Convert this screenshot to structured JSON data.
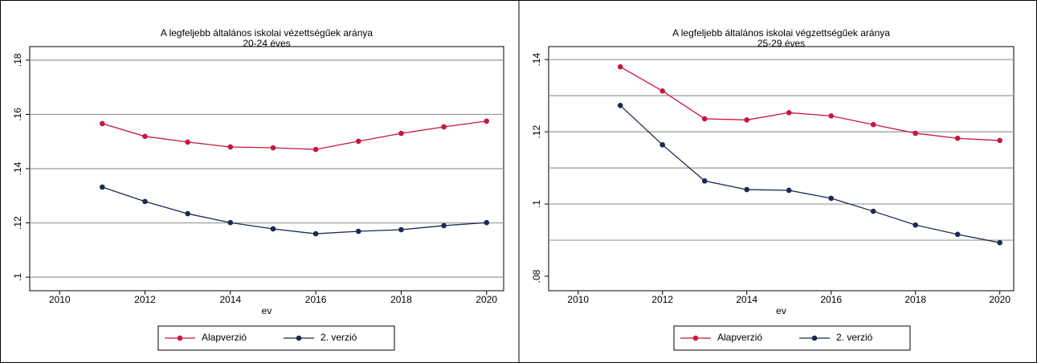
{
  "chart_data": [
    {
      "type": "line",
      "title": "A legfeljebb általános iskolai vézettségűek aránya",
      "subtitle": "20-24 éves",
      "x_label": "ev",
      "x": [
        2011,
        2012,
        2013,
        2014,
        2015,
        2016,
        2017,
        2018,
        2019,
        2020
      ],
      "xlim": [
        2009.3,
        2020.4
      ],
      "xticks": [
        2010,
        2012,
        2014,
        2016,
        2018,
        2020
      ],
      "ylim": [
        0.095,
        0.185
      ],
      "yticks": [
        {
          "value": 0.1,
          "label": ".1"
        },
        {
          "value": 0.12,
          "label": ".12"
        },
        {
          "value": 0.14,
          "label": ".14"
        },
        {
          "value": 0.16,
          "label": ".16"
        },
        {
          "value": 0.18,
          "label": ".18"
        }
      ],
      "ygrid": [
        0.1,
        0.12,
        0.14,
        0.16,
        0.18
      ],
      "series": [
        {
          "name": "Alapverzió",
          "color": "#c8163f",
          "values": [
            0.1566,
            0.1519,
            0.1498,
            0.148,
            0.1477,
            0.1471,
            0.1501,
            0.153,
            0.1554,
            0.1575
          ]
        },
        {
          "name": "2. verzió",
          "color": "#1b2a4e",
          "values": [
            0.1332,
            0.1279,
            0.1234,
            0.1201,
            0.1178,
            0.116,
            0.1169,
            0.1175,
            0.119,
            0.1201
          ]
        }
      ]
    },
    {
      "type": "line",
      "title": "A legfeljebb általános iskolai végzettségűek aránya",
      "subtitle": "25-29 éves",
      "x_label": "ev",
      "x": [
        2011,
        2012,
        2013,
        2014,
        2015,
        2016,
        2017,
        2018,
        2019,
        2020
      ],
      "xlim": [
        2009.3,
        2020.33
      ],
      "xticks": [
        2010,
        2012,
        2014,
        2016,
        2018,
        2020
      ],
      "ylim": [
        0.076,
        0.1436
      ],
      "yticks": [
        {
          "value": 0.08,
          "label": ".08"
        },
        {
          "value": 0.1,
          "label": ".1"
        },
        {
          "value": 0.12,
          "label": ".12"
        },
        {
          "value": 0.14,
          "label": ".14"
        }
      ],
      "ygrid": [
        0.09,
        0.1,
        0.11,
        0.12,
        0.13,
        0.14
      ],
      "series": [
        {
          "name": "Alapverzió",
          "color": "#c8163f",
          "values": [
            0.138,
            0.1313,
            0.1236,
            0.1233,
            0.1253,
            0.1244,
            0.122,
            0.1196,
            0.1182,
            0.1176
          ]
        },
        {
          "name": "2. verzió",
          "color": "#1b2a4e",
          "values": [
            0.1273,
            0.1164,
            0.1064,
            0.104,
            0.1038,
            0.1016,
            0.098,
            0.0942,
            0.0916,
            0.0893
          ]
        }
      ]
    }
  ]
}
